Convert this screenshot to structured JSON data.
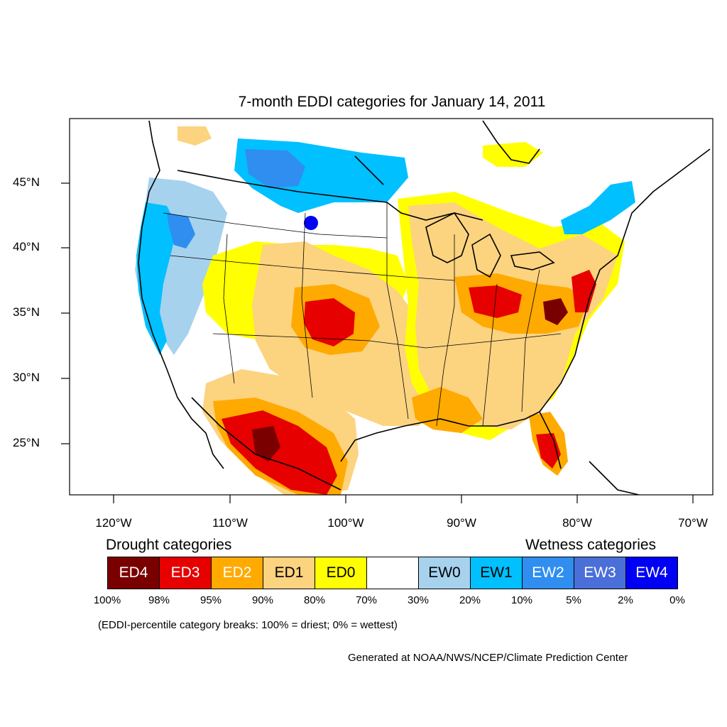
{
  "title": "7-month EDDI categories for January 14, 2011",
  "lat_labels": [
    "45°N",
    "40°N",
    "35°N",
    "30°N",
    "25°N"
  ],
  "lon_labels": [
    "120°W",
    "110°W",
    "100°W",
    "90°W",
    "80°W",
    "70°W"
  ],
  "legend": {
    "drought_heading": "Drought categories",
    "wetness_heading": "Wetness categories",
    "categories": [
      {
        "label": "ED4",
        "color": "#7a0000",
        "text_color": "#ffffff"
      },
      {
        "label": "ED3",
        "color": "#e60000",
        "text_color": "#ffffff"
      },
      {
        "label": "ED2",
        "color": "#ffaa00",
        "text_color": "#ffffff"
      },
      {
        "label": "ED1",
        "color": "#fcd37f",
        "text_color": "#000000"
      },
      {
        "label": "ED0",
        "color": "#ffff00",
        "text_color": "#000000"
      },
      {
        "label": "",
        "color": "#ffffff",
        "text_color": "#000000"
      },
      {
        "label": "EW0",
        "color": "#a6d2ee",
        "text_color": "#000000"
      },
      {
        "label": "EW1",
        "color": "#00c0ff",
        "text_color": "#000000"
      },
      {
        "label": "EW2",
        "color": "#2f8ef0",
        "text_color": "#ffffff"
      },
      {
        "label": "EW3",
        "color": "#4b6fd9",
        "text_color": "#ffffff"
      },
      {
        "label": "EW4",
        "color": "#0000f5",
        "text_color": "#ffffff"
      }
    ],
    "breaks": [
      "100%",
      "98%",
      "95%",
      "90%",
      "80%",
      "70%",
      "30%",
      "20%",
      "10%",
      "5%",
      "2%",
      "0%"
    ]
  },
  "note": "(EDDI-percentile category breaks: 100% = driest; 0% = wettest)",
  "credit": "Generated at NOAA/NWS/NCEP/Climate Prediction Center"
}
